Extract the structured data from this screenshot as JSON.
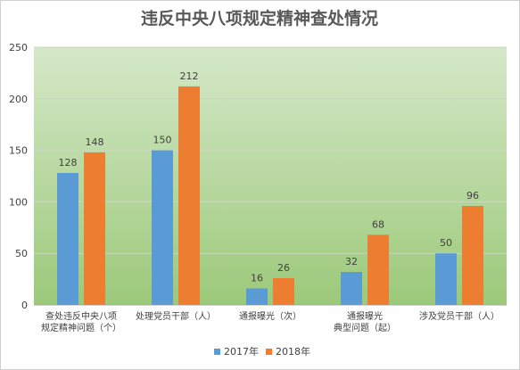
{
  "chart_data": {
    "type": "bar",
    "title": "违反中央八项规定精神查处情况",
    "xlabel": "",
    "ylabel": "",
    "categories": [
      [
        "查处违反中央八项",
        "规定精神问题（个）"
      ],
      [
        "处理党员干部（人）"
      ],
      [
        "通报曝光（次）"
      ],
      [
        "通报曝光",
        "典型问题（起）"
      ],
      [
        "涉及党员干部（人）"
      ]
    ],
    "series": [
      {
        "name": "2017年",
        "color": "#5b9bd5",
        "values": [
          128,
          150,
          16,
          32,
          50
        ]
      },
      {
        "name": "2018年",
        "color": "#ed7d31",
        "values": [
          148,
          212,
          26,
          68,
          96
        ]
      }
    ],
    "ylim": [
      0,
      250
    ],
    "yticks": [
      0,
      50,
      100,
      150,
      200,
      250
    ],
    "grid": true,
    "legend_position": "bottom",
    "background_gradient": [
      "#d5e8c8",
      "#9cc97a"
    ]
  }
}
